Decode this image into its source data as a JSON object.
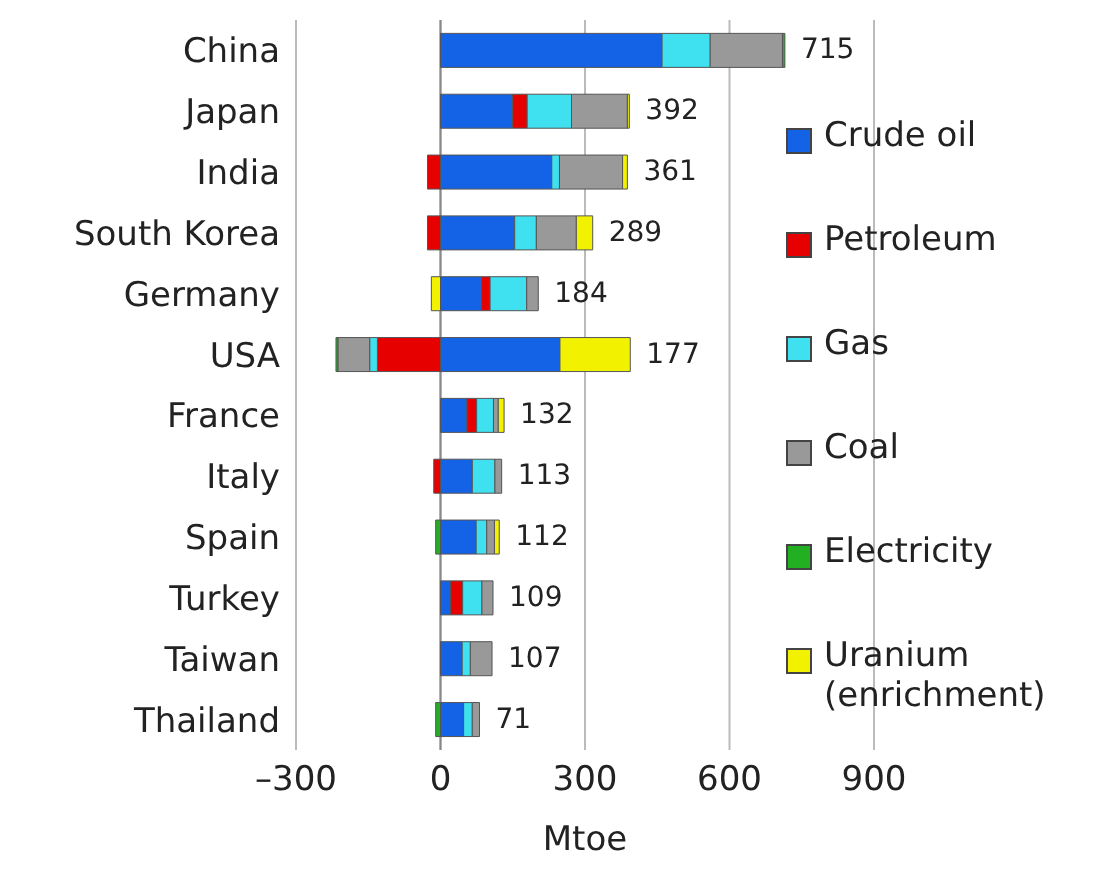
{
  "chart_data": {
    "type": "bar",
    "orientation": "horizontal",
    "stacked": true,
    "xlabel": "Mtoe",
    "categories": [
      "China",
      "Japan",
      "India",
      "South Korea",
      "Germany",
      "USA",
      "France",
      "Italy",
      "Spain",
      "Turkey",
      "Taiwan",
      "Thailand"
    ],
    "series": [
      {
        "name": "Crude oil",
        "color": "#1463e6",
        "values": [
          460,
          150,
          231,
          154,
          85,
          248,
          55,
          66,
          74,
          21,
          45,
          48
        ]
      },
      {
        "name": "Petroleum",
        "color": "#e60000",
        "values": [
          0,
          30,
          -27,
          -27,
          18,
          -131,
          20,
          -14,
          0,
          25,
          0,
          0
        ]
      },
      {
        "name": "Gas",
        "color": "#3fe0f0",
        "values": [
          100,
          92,
          16,
          45,
          76,
          -16,
          35,
          47,
          22,
          40,
          17,
          18
        ]
      },
      {
        "name": "Coal",
        "color": "#999999",
        "values": [
          150,
          116,
          131,
          83,
          24,
          -66,
          10,
          14,
          16,
          23,
          45,
          15
        ]
      },
      {
        "name": "Electricity",
        "color": "#22b022",
        "values": [
          5,
          0,
          0,
          0,
          0,
          -4,
          0,
          0,
          -10,
          0,
          0,
          -10
        ]
      },
      {
        "name": "Uranium (enrichment)",
        "color": "#f2f200",
        "values": [
          0,
          4,
          10,
          34,
          -19,
          146,
          12,
          0,
          10,
          0,
          0,
          0
        ]
      }
    ],
    "totals": [
      "715",
      "392",
      "361",
      "289",
      "184",
      "177",
      "132",
      "113",
      "112",
      "109",
      "107",
      "71"
    ],
    "xlim": [
      -300,
      900
    ],
    "xticks": [
      {
        "value": -300,
        "label": "–300"
      },
      0,
      300,
      600,
      900
    ],
    "grid": "x",
    "legend": "right"
  }
}
